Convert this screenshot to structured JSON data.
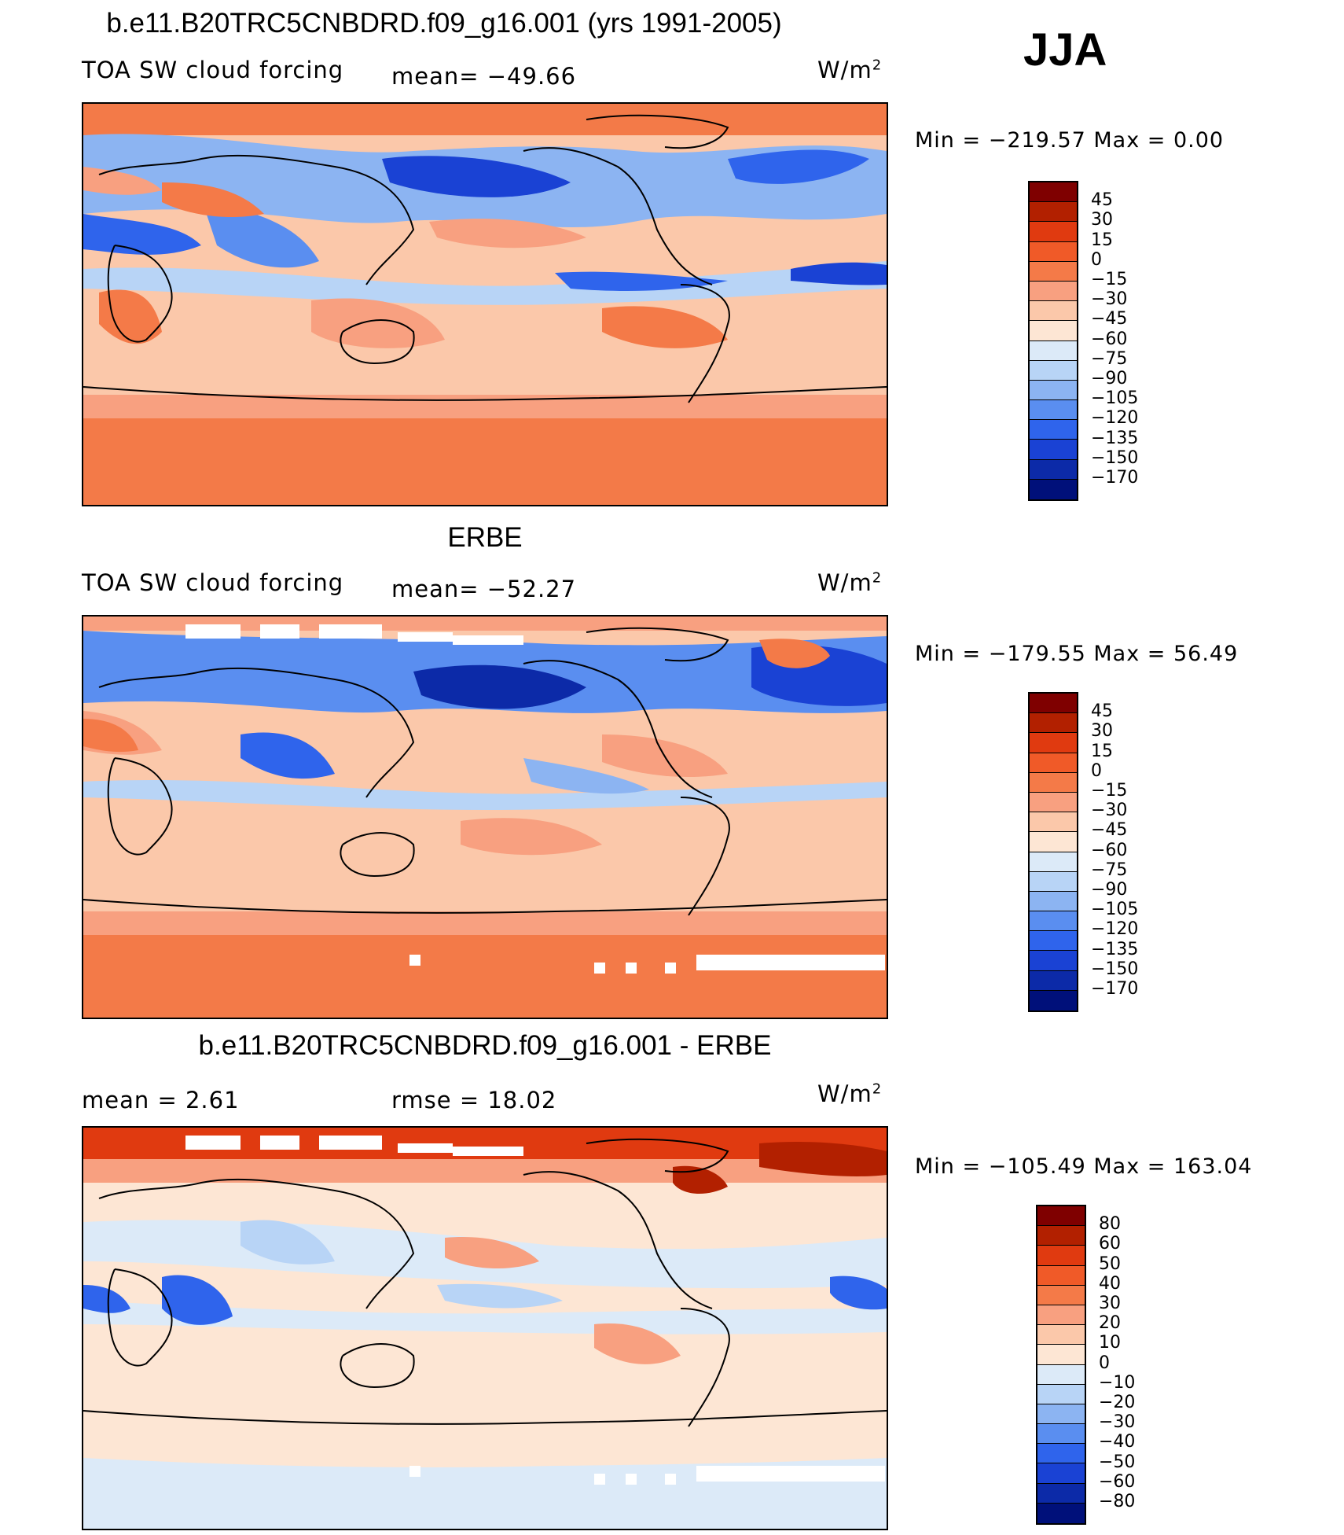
{
  "season": "JJA",
  "panels": [
    {
      "title": "b.e11.B20TRC5CNBDRD.f09_g16.001 (yrs 1991-2005)",
      "left_label": "TOA SW cloud forcing",
      "stat": "mean= −49.66",
      "units": "W/m",
      "units_sup": "2",
      "minmax": "Min  =  −219.57  Max  =     0.00",
      "colorbar": {
        "levels": [
          "45",
          "30",
          "15",
          "0",
          "−15",
          "−30",
          "−45",
          "−60",
          "−75",
          "−90",
          "−105",
          "−120",
          "−135",
          "−150",
          "−170"
        ],
        "colors": [
          "#7f0000",
          "#b22000",
          "#e03a10",
          "#f05a28",
          "#f47a48",
          "#f8a080",
          "#fbc8aa",
          "#fde6d4",
          "#dceaf8",
          "#b8d4f6",
          "#8cb4f2",
          "#5a8ef0",
          "#2f64ec",
          "#1a42d4",
          "#0c2aa8",
          "#00107a"
        ]
      }
    },
    {
      "title": "ERBE",
      "left_label": "TOA SW cloud forcing",
      "stat": "mean= −52.27",
      "units": "W/m",
      "units_sup": "2",
      "minmax": "Min  =  −179.55  Max  =   56.49",
      "colorbar": {
        "levels": [
          "45",
          "30",
          "15",
          "0",
          "−15",
          "−30",
          "−45",
          "−60",
          "−75",
          "−90",
          "−105",
          "−120",
          "−135",
          "−150",
          "−170"
        ],
        "colors": [
          "#7f0000",
          "#b22000",
          "#e03a10",
          "#f05a28",
          "#f47a48",
          "#f8a080",
          "#fbc8aa",
          "#fde6d4",
          "#dceaf8",
          "#b8d4f6",
          "#8cb4f2",
          "#5a8ef0",
          "#2f64ec",
          "#1a42d4",
          "#0c2aa8",
          "#00107a"
        ]
      }
    },
    {
      "title": "b.e11.B20TRC5CNBDRD.f09_g16.001 - ERBE",
      "left_label": "mean  =     2.61",
      "stat": "rmse  =    18.02",
      "units": "W/m",
      "units_sup": "2",
      "minmax": "Min  =  −105.49  Max  =  163.04",
      "colorbar": {
        "levels": [
          "80",
          "60",
          "50",
          "40",
          "30",
          "20",
          "10",
          "0",
          "−10",
          "−20",
          "−30",
          "−40",
          "−50",
          "−60",
          "−80"
        ],
        "colors": [
          "#7f0000",
          "#b22000",
          "#e03a10",
          "#f05a28",
          "#f47a48",
          "#f8a080",
          "#fbc8aa",
          "#fde6d4",
          "#dceaf8",
          "#b8d4f6",
          "#8cb4f2",
          "#5a8ef0",
          "#2f64ec",
          "#1a42d4",
          "#0c2aa8",
          "#00107a"
        ]
      }
    }
  ],
  "colors": {
    "ocean_warm": "#f7a27e",
    "pale_warm": "#fbd2b8",
    "polar_warm": "#f37a48",
    "cloud_blue": "#5a8ef0",
    "deep_blue": "#1a42d4",
    "pale_blue": "#d8e8f8"
  }
}
